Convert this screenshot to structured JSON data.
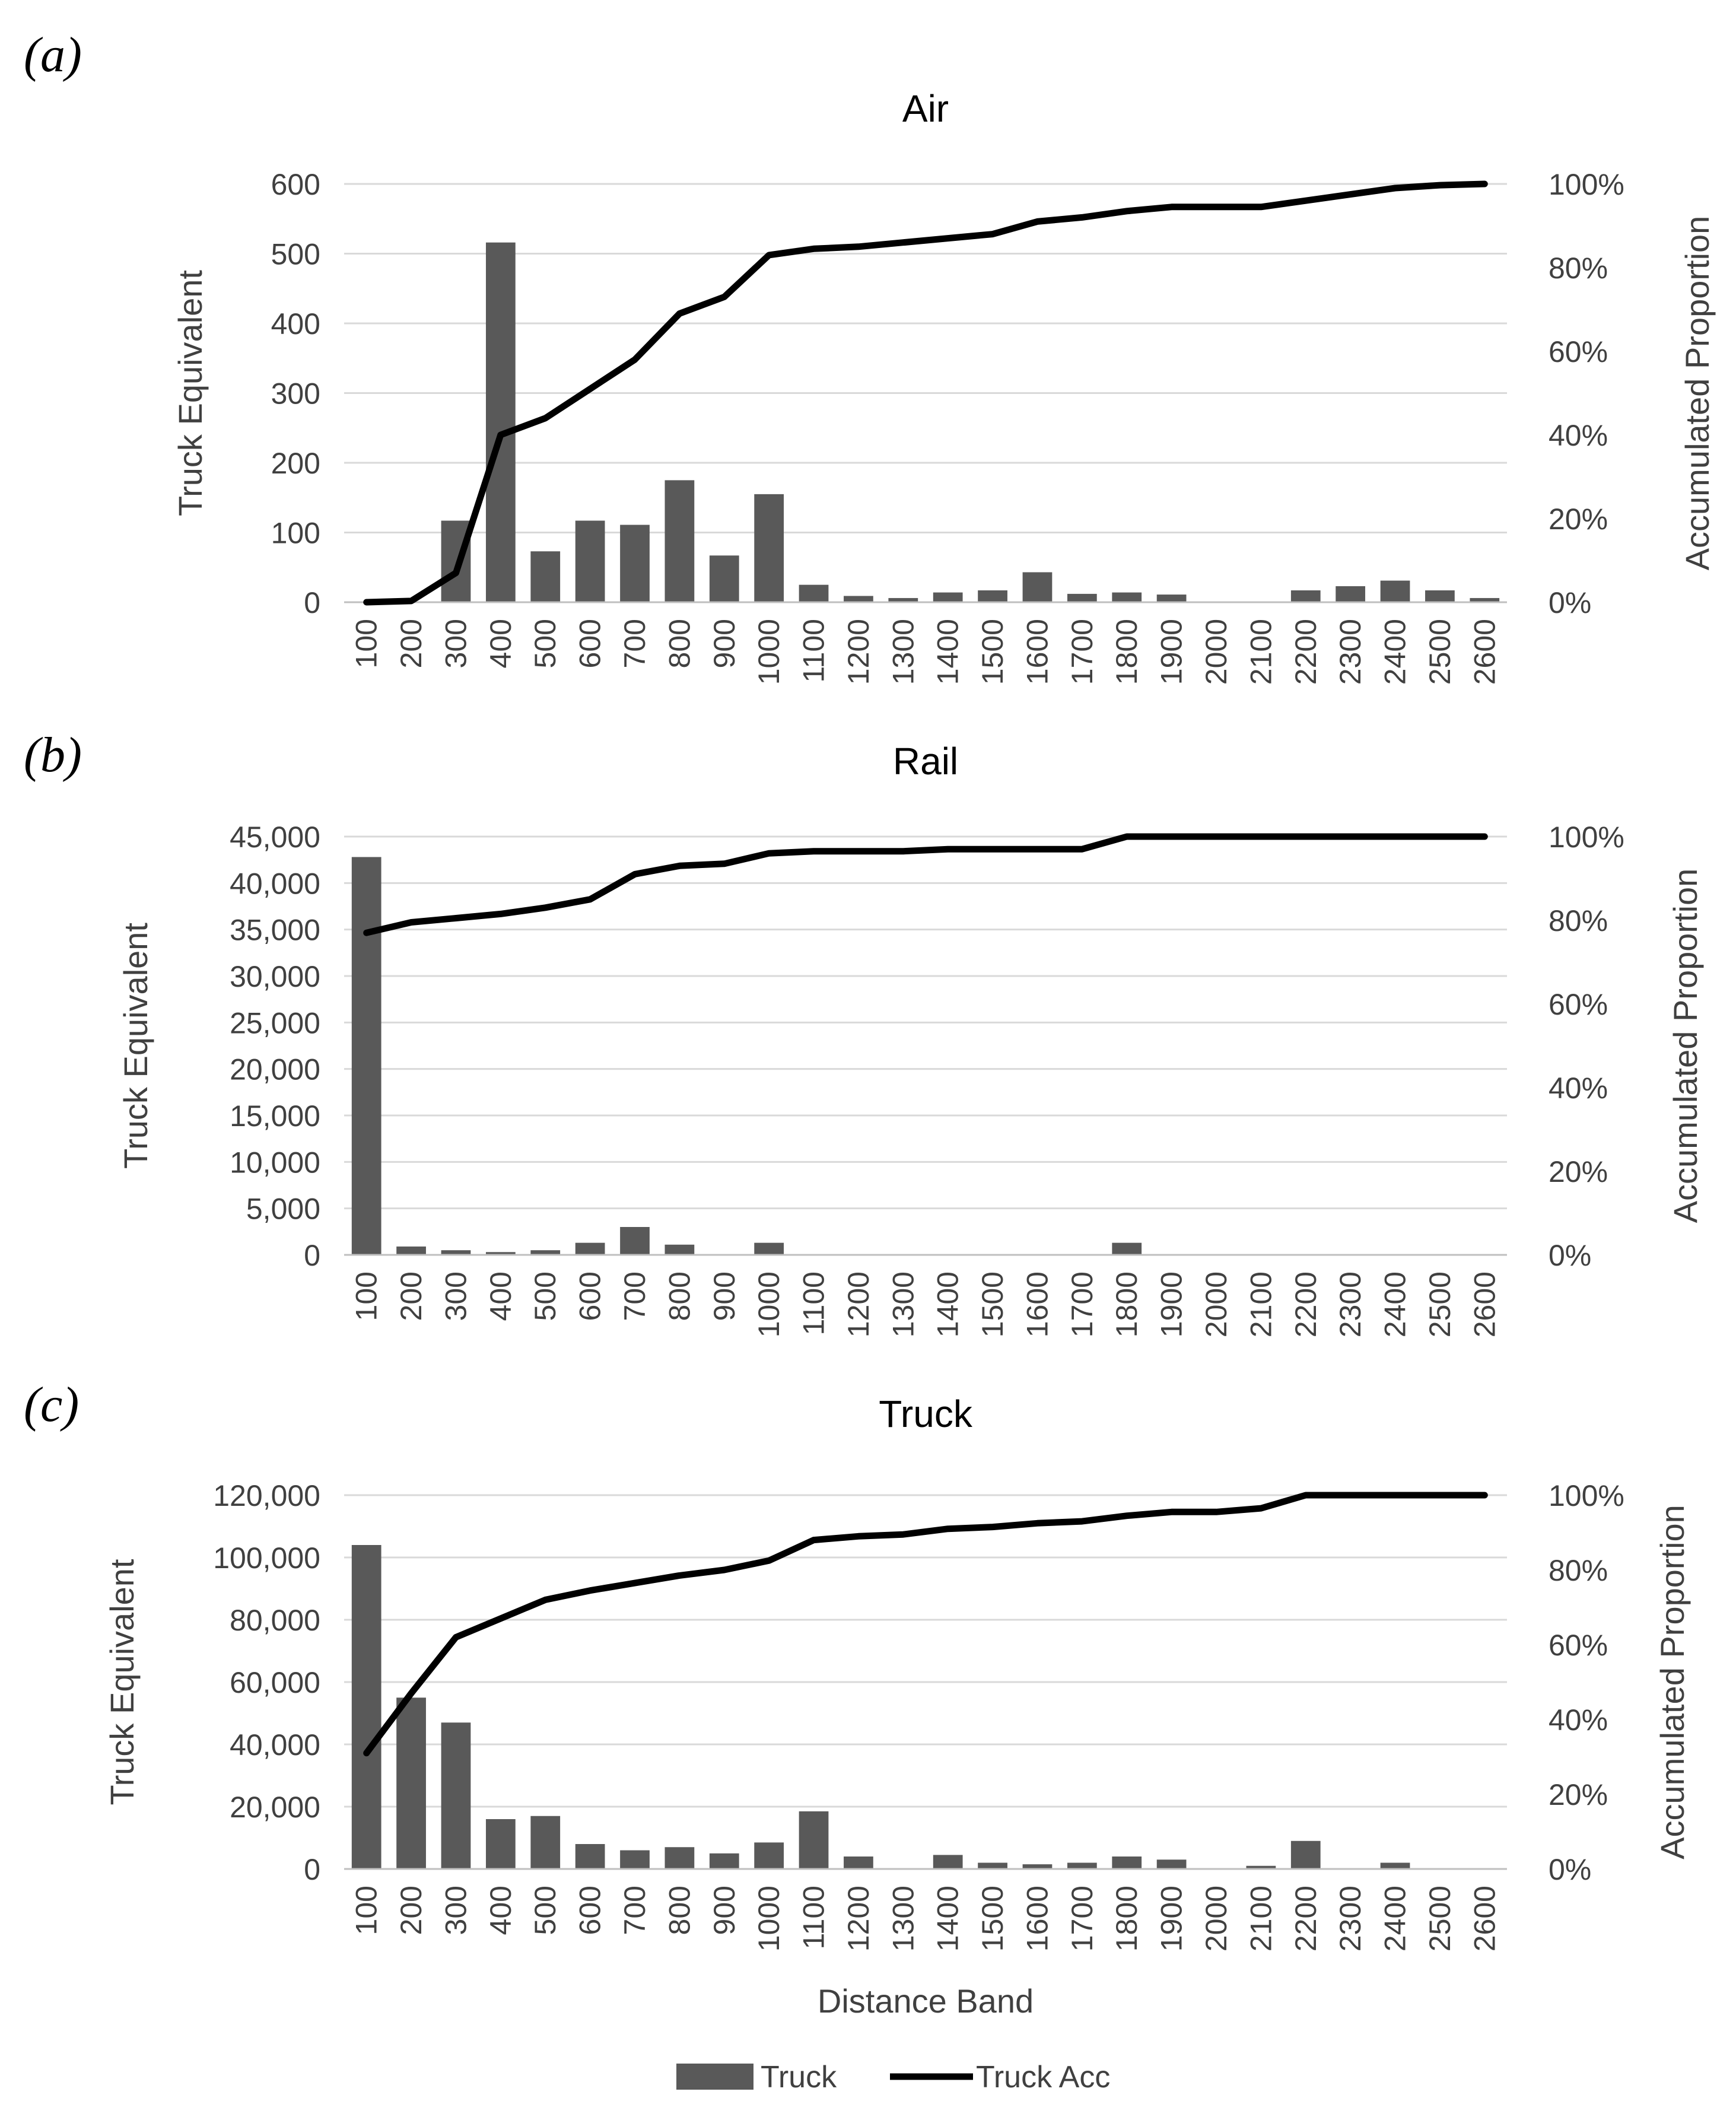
{
  "figure": {
    "legend": {
      "bar_label": "Truck",
      "line_label": "Truck Acc",
      "position": "bottom-center"
    },
    "colors": {
      "bar": "#595959",
      "line": "#000000",
      "grid": "#d9d9d9",
      "axis": "#bfbfbf",
      "text": "#404040"
    }
  },
  "chart_data": [
    {
      "panel_label": "(a)",
      "type": "bar",
      "title": "Air",
      "xlabel": "",
      "ylabel": "Truck Equivalent",
      "y2label": "Accumulated Proportion",
      "ylim": [
        0,
        600
      ],
      "yticks": [
        0,
        100,
        200,
        300,
        400,
        500,
        600
      ],
      "ytick_labels": [
        "0",
        "100",
        "200",
        "300",
        "400",
        "500",
        "600"
      ],
      "y2ticks": [
        0,
        20,
        40,
        60,
        80,
        100
      ],
      "y2tick_labels": [
        "0%",
        "20%",
        "40%",
        "60%",
        "80%",
        "100%"
      ],
      "grid": true,
      "categories": [
        "100",
        "200",
        "300",
        "400",
        "500",
        "600",
        "700",
        "800",
        "900",
        "1000",
        "1100",
        "1200",
        "1300",
        "1400",
        "1500",
        "1600",
        "1700",
        "1800",
        "1900",
        "2000",
        "2100",
        "2200",
        "2300",
        "2400",
        "2500",
        "2600"
      ],
      "series": [
        {
          "name": "Truck",
          "type": "bar",
          "axis": "left",
          "values": [
            0,
            0,
            117,
            516,
            73,
            117,
            111,
            175,
            67,
            155,
            25,
            9,
            6,
            14,
            17,
            43,
            12,
            14,
            11,
            0,
            0,
            17,
            23,
            31,
            17,
            6
          ]
        },
        {
          "name": "Truck Acc",
          "type": "line",
          "axis": "right",
          "values": [
            0,
            0.3,
            7,
            40,
            44,
            51,
            58,
            69,
            73,
            83,
            84.5,
            85,
            86,
            87,
            88,
            91,
            92,
            93.5,
            94.5,
            94.5,
            94.5,
            96,
            97.5,
            99,
            99.7,
            100
          ]
        }
      ]
    },
    {
      "panel_label": "(b)",
      "type": "bar",
      "title": "Rail",
      "xlabel": "",
      "ylabel": "Truck Equivalent",
      "y2label": "Accumulated Proportion",
      "ylim": [
        0,
        45000
      ],
      "yticks": [
        0,
        5000,
        10000,
        15000,
        20000,
        25000,
        30000,
        35000,
        40000,
        45000
      ],
      "ytick_labels": [
        "0",
        "5,000",
        "10,000",
        "15,000",
        "20,000",
        "25,000",
        "30,000",
        "35,000",
        "40,000",
        "45,000"
      ],
      "y2ticks": [
        0,
        20,
        40,
        60,
        80,
        100
      ],
      "y2tick_labels": [
        "0%",
        "20%",
        "40%",
        "60%",
        "80%",
        "100%"
      ],
      "grid": true,
      "categories": [
        "100",
        "200",
        "300",
        "400",
        "500",
        "600",
        "700",
        "800",
        "900",
        "1000",
        "1100",
        "1200",
        "1300",
        "1400",
        "1500",
        "1600",
        "1700",
        "1800",
        "1900",
        "2000",
        "2100",
        "2200",
        "2300",
        "2400",
        "2500",
        "2600"
      ],
      "series": [
        {
          "name": "Truck",
          "type": "bar",
          "axis": "left",
          "values": [
            42800,
            900,
            500,
            300,
            500,
            1300,
            3000,
            1100,
            0,
            1300,
            0,
            0,
            0,
            0,
            0,
            0,
            0,
            1300,
            0,
            0,
            0,
            0,
            0,
            0,
            0,
            0
          ]
        },
        {
          "name": "Truck Acc",
          "type": "line",
          "axis": "right",
          "values": [
            77,
            79.5,
            80.5,
            81.5,
            83,
            85,
            91,
            93,
            93.5,
            96,
            96.5,
            96.5,
            96.5,
            97,
            97,
            97,
            97,
            100,
            100,
            100,
            100,
            100,
            100,
            100,
            100,
            100
          ]
        }
      ]
    },
    {
      "panel_label": "(c)",
      "type": "bar",
      "title": "Truck",
      "xlabel": "Distance Band",
      "ylabel": "Truck Equivalent",
      "y2label": "Accumulated Proportion",
      "ylim": [
        0,
        120000
      ],
      "yticks": [
        0,
        20000,
        40000,
        60000,
        80000,
        100000,
        120000
      ],
      "ytick_labels": [
        "0",
        "20,000",
        "40,000",
        "60,000",
        "80,000",
        "100,000",
        "120,000"
      ],
      "y2ticks": [
        0,
        20,
        40,
        60,
        80,
        100
      ],
      "y2tick_labels": [
        "0%",
        "20%",
        "40%",
        "60%",
        "80%",
        "100%"
      ],
      "grid": true,
      "categories": [
        "100",
        "200",
        "300",
        "400",
        "500",
        "600",
        "700",
        "800",
        "900",
        "1000",
        "1100",
        "1200",
        "1300",
        "1400",
        "1500",
        "1600",
        "1700",
        "1800",
        "1900",
        "2000",
        "2100",
        "2200",
        "2300",
        "2400",
        "2500",
        "2600"
      ],
      "series": [
        {
          "name": "Truck",
          "type": "bar",
          "axis": "left",
          "values": [
            104000,
            55000,
            47000,
            16000,
            17000,
            8000,
            6000,
            7000,
            5000,
            8500,
            18500,
            4000,
            0,
            4500,
            2000,
            1500,
            2000,
            4000,
            3000,
            0,
            1000,
            9000,
            0,
            2000,
            0,
            0
          ]
        },
        {
          "name": "Truck Acc",
          "type": "line",
          "axis": "right",
          "values": [
            31,
            47,
            62,
            67,
            72,
            74.5,
            76.5,
            78.5,
            80,
            82.5,
            88,
            89,
            89.5,
            91,
            91.5,
            92.5,
            93,
            94.5,
            95.5,
            95.5,
            96.5,
            100,
            100,
            100.3,
            100.6,
            100.6
          ]
        }
      ]
    }
  ]
}
